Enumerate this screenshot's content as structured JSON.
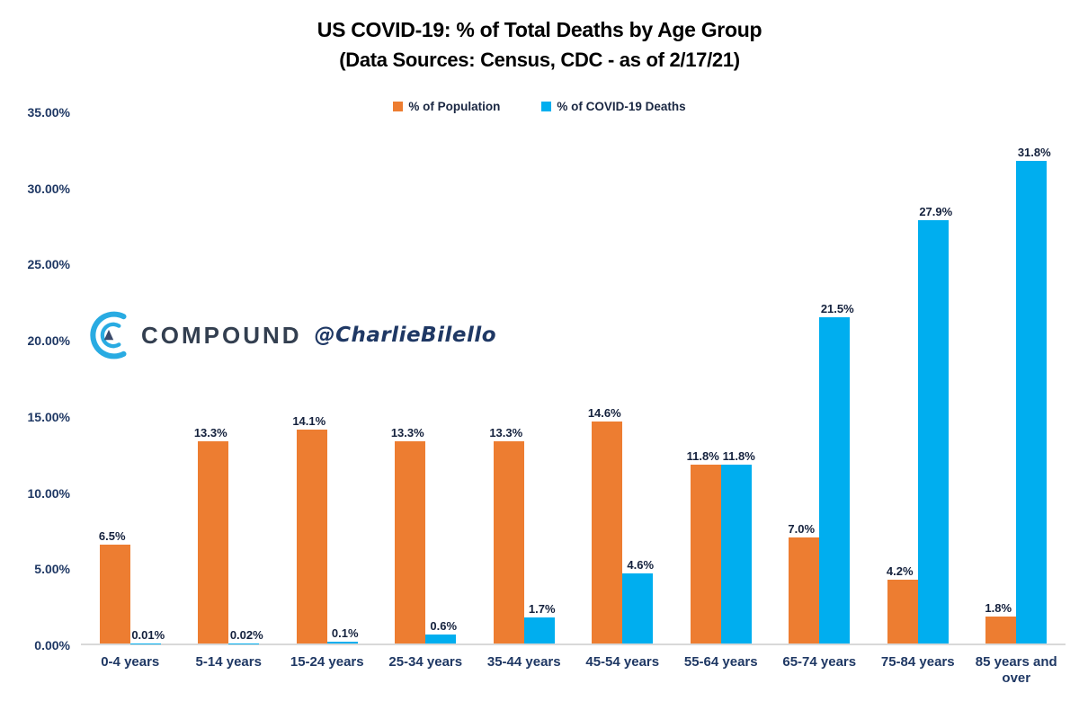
{
  "chart_data": {
    "type": "bar",
    "title": "US COVID-19: % of Total Deaths by Age Group",
    "subtitle": "(Data Sources: Census, CDC - as of 2/17/21)",
    "categories": [
      "0-4 years",
      "5-14 years",
      "15-24 years",
      "25-34 years",
      "35-44 years",
      "45-54 years",
      "55-64 years",
      "65-74 years",
      "75-84 years",
      "85 years and over"
    ],
    "series": [
      {
        "name": "% of Population",
        "color": "#ED7D31",
        "values": [
          6.5,
          13.3,
          14.1,
          13.3,
          13.3,
          14.6,
          11.8,
          7.0,
          4.2,
          1.8
        ],
        "labels": [
          "6.5%",
          "13.3%",
          "14.1%",
          "13.3%",
          "13.3%",
          "14.6%",
          "11.8%",
          "7.0%",
          "4.2%",
          "1.8%"
        ]
      },
      {
        "name": "% of COVID-19 Deaths",
        "color": "#00AEEF",
        "values": [
          0.01,
          0.02,
          0.1,
          0.6,
          1.7,
          4.6,
          11.8,
          21.5,
          27.9,
          31.8
        ],
        "labels": [
          "0.01%",
          "0.02%",
          "0.1%",
          "0.6%",
          "1.7%",
          "4.6%",
          "11.8%",
          "21.5%",
          "27.9%",
          "31.8%"
        ]
      }
    ],
    "ylim": [
      0,
      35
    ],
    "yticks": [
      0,
      5,
      10,
      15,
      20,
      25,
      30,
      35
    ],
    "ytick_labels": [
      "0.00%",
      "5.00%",
      "10.00%",
      "15.00%",
      "20.00%",
      "25.00%",
      "30.00%",
      "35.00%"
    ],
    "grid": false,
    "legend_position": "top-center",
    "axis_line_color": "#D9D9D9"
  },
  "watermark": {
    "brand": "COMPOUND",
    "handle": "@CharlieBilello",
    "icon": "compound-arc-logo",
    "icon_color": "#29ABE2",
    "triangle_color": "#3b4a6b"
  }
}
